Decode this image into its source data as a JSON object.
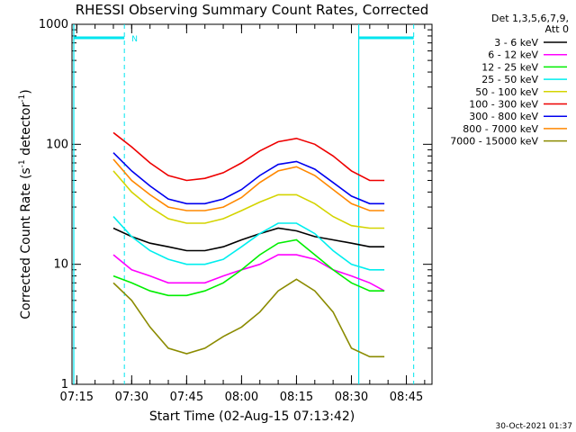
{
  "chart_data": {
    "type": "line",
    "title": "RHESSI Observing Summary Count Rates, Corrected",
    "xlabel": "Start Time (02-Aug-15 07:13:42)",
    "ylabel_main": "Corrected Count Rate (s",
    "ylabel_sup1": "-1",
    "ylabel_mid": " detector",
    "ylabel_sup2": "-1",
    "ylabel_end": ")",
    "y_scale": "log",
    "ylim": [
      1,
      1000
    ],
    "xlim": [
      "07:13:42",
      "08:52"
    ],
    "x_ticks": [
      "07:15",
      "07:30",
      "07:45",
      "08:00",
      "08:15",
      "08:30",
      "08:45"
    ],
    "y_ticks": [
      "1",
      "10",
      "100",
      "1000"
    ],
    "legend_header": [
      "Det 1,3,5,6,7,9,",
      "Att 0"
    ],
    "legend_position": "right",
    "annotation_marker": "N",
    "footer_date": "30-Oct-2021 01:37",
    "background_color": "#ffffff",
    "axis_color": "#000000",
    "annotation_color": "#00e5ee",
    "x": [
      "07:25",
      "07:30",
      "07:35",
      "07:40",
      "07:45",
      "07:50",
      "07:55",
      "08:00",
      "08:05",
      "08:10",
      "08:15",
      "08:20",
      "08:25",
      "08:30",
      "08:35",
      "08:39"
    ],
    "series": [
      {
        "name": "3 - 6 keV",
        "color": "#000000",
        "values": [
          20,
          17,
          15,
          14,
          13,
          13,
          14,
          16,
          18,
          20,
          19,
          17,
          16,
          15,
          14,
          14
        ]
      },
      {
        "name": "6 - 12 keV",
        "color": "#ff00ff",
        "values": [
          12,
          9,
          8,
          7,
          7,
          7,
          8,
          9,
          10,
          12,
          12,
          11,
          9,
          8,
          7,
          6
        ]
      },
      {
        "name": "12 - 25 keV",
        "color": "#00ee00",
        "values": [
          8,
          7,
          6,
          5.5,
          5.5,
          6,
          7,
          9,
          12,
          15,
          16,
          12,
          9,
          7,
          6,
          6
        ]
      },
      {
        "name": "25 - 50 keV",
        "color": "#00eeee",
        "values": [
          25,
          17,
          13,
          11,
          10,
          10,
          11,
          14,
          18,
          22,
          22,
          18,
          13,
          10,
          9,
          9
        ]
      },
      {
        "name": "50 - 100 keV",
        "color": "#d4d400",
        "values": [
          60,
          40,
          30,
          24,
          22,
          22,
          24,
          28,
          33,
          38,
          38,
          32,
          25,
          21,
          20,
          20
        ]
      },
      {
        "name": "100 - 300 keV",
        "color": "#ee0000",
        "values": [
          125,
          95,
          70,
          55,
          50,
          52,
          58,
          70,
          88,
          105,
          112,
          100,
          80,
          60,
          50,
          50
        ]
      },
      {
        "name": "300 - 800 keV",
        "color": "#0000ee",
        "values": [
          85,
          60,
          45,
          35,
          32,
          32,
          35,
          42,
          55,
          68,
          72,
          62,
          48,
          37,
          32,
          32
        ]
      },
      {
        "name": "800 - 7000 keV",
        "color": "#ff8800",
        "values": [
          75,
          50,
          38,
          30,
          28,
          28,
          30,
          36,
          48,
          60,
          65,
          55,
          42,
          32,
          28,
          28
        ]
      },
      {
        "name": "7000 - 15000 keV",
        "color": "#8b8b00",
        "values": [
          7,
          5,
          3,
          2,
          1.8,
          2,
          2.5,
          3,
          4,
          6,
          7.5,
          6,
          4,
          2,
          1.7,
          1.7
        ]
      }
    ]
  }
}
